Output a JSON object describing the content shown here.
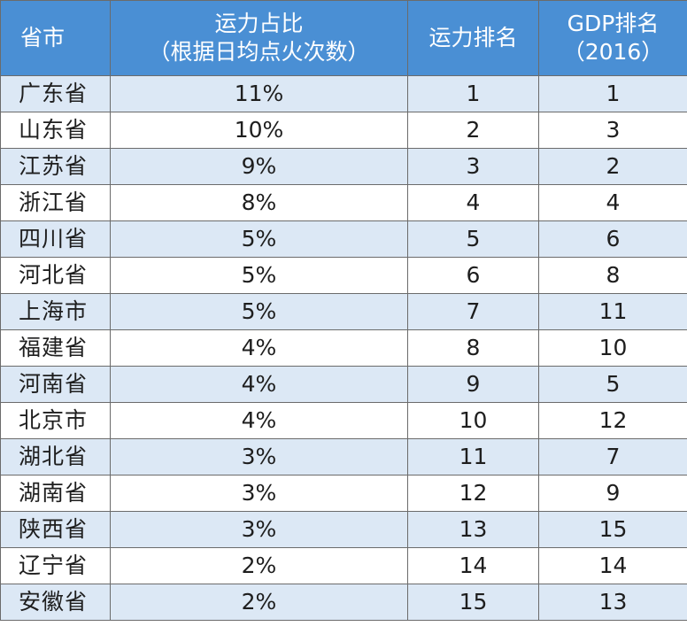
{
  "table": {
    "headers": {
      "province": "省市",
      "share_line1": "运力占比",
      "share_line2": "（根据日均点火次数）",
      "capacity_rank": "运力排名",
      "gdp_rank_line1": "GDP排名",
      "gdp_rank_line2": "（2016）"
    },
    "rows": [
      {
        "province": "广东省",
        "share": "11%",
        "capacity_rank": "1",
        "gdp_rank": "1"
      },
      {
        "province": "山东省",
        "share": "10%",
        "capacity_rank": "2",
        "gdp_rank": "3"
      },
      {
        "province": "江苏省",
        "share": "9%",
        "capacity_rank": "3",
        "gdp_rank": "2"
      },
      {
        "province": "浙江省",
        "share": "8%",
        "capacity_rank": "4",
        "gdp_rank": "4"
      },
      {
        "province": "四川省",
        "share": "5%",
        "capacity_rank": "5",
        "gdp_rank": "6"
      },
      {
        "province": "河北省",
        "share": "5%",
        "capacity_rank": "6",
        "gdp_rank": "8"
      },
      {
        "province": "上海市",
        "share": "5%",
        "capacity_rank": "7",
        "gdp_rank": "11"
      },
      {
        "province": "福建省",
        "share": "4%",
        "capacity_rank": "8",
        "gdp_rank": "10"
      },
      {
        "province": "河南省",
        "share": "4%",
        "capacity_rank": "9",
        "gdp_rank": "5"
      },
      {
        "province": "北京市",
        "share": "4%",
        "capacity_rank": "10",
        "gdp_rank": "12"
      },
      {
        "province": "湖北省",
        "share": "3%",
        "capacity_rank": "11",
        "gdp_rank": "7"
      },
      {
        "province": "湖南省",
        "share": "3%",
        "capacity_rank": "12",
        "gdp_rank": "9"
      },
      {
        "province": "陕西省",
        "share": "3%",
        "capacity_rank": "13",
        "gdp_rank": "15"
      },
      {
        "province": "辽宁省",
        "share": "2%",
        "capacity_rank": "14",
        "gdp_rank": "14"
      },
      {
        "province": "安徽省",
        "share": "2%",
        "capacity_rank": "15",
        "gdp_rank": "13"
      }
    ]
  },
  "colors": {
    "header_bg": "#4A8FD4",
    "header_text": "#FFFFFF",
    "row_alt_bg": "#DCE8F5",
    "row_bg": "#FFFFFF",
    "border": "#6B6B6B"
  }
}
